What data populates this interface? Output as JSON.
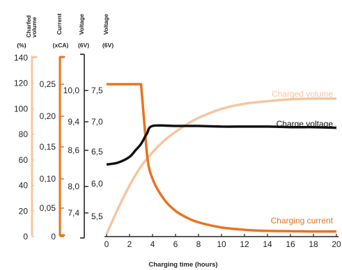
{
  "chart_data": {
    "type": "line",
    "xlabel": "Charging time (hours)",
    "x_ticks": [
      0,
      2,
      4,
      6,
      8,
      10,
      12,
      14,
      16,
      18,
      20
    ],
    "xlim": [
      0,
      20
    ],
    "grid": false,
    "axes": [
      {
        "id": "volume",
        "header": "Charfed\nvolume",
        "unit": "(%)",
        "color": "#f5c6a0",
        "ylim": [
          0,
          140
        ],
        "ticks": [
          "0",
          "20",
          "40",
          "60",
          "80",
          "100",
          "120",
          "140"
        ],
        "tick_values": [
          0,
          20,
          40,
          60,
          80,
          100,
          120,
          140
        ]
      },
      {
        "id": "current",
        "header": "Current",
        "unit": "(xCA)",
        "color": "#e8731e",
        "ylim": [
          0,
          0.28
        ],
        "ticks": [
          "0",
          "0,05",
          "0,10",
          "0,15",
          "0,20",
          "0,25"
        ],
        "tick_values": [
          0,
          0.05,
          0.1,
          0.15,
          0.2,
          0.25
        ]
      },
      {
        "id": "voltage12",
        "header": "Voltage",
        "unit": "(6V)",
        "color": "#222222",
        "ticks": [
          "7,4",
          "8,0",
          "8,6",
          "9,4",
          "10,0"
        ],
        "tick_values": [
          7.4,
          8.0,
          8.6,
          9.4,
          10.0
        ]
      },
      {
        "id": "voltage6",
        "header": "Voltage",
        "unit": "(6V)",
        "color": "#222222",
        "ticks": [
          "5,5",
          "6,0",
          "6,5",
          "7,0",
          "7,5"
        ],
        "tick_values": [
          5.5,
          6.0,
          6.5,
          7.0,
          7.5
        ]
      }
    ],
    "series": [
      {
        "name": "Charged volume",
        "axis": "volume",
        "color": "#f5c6a0",
        "x": [
          0,
          1,
          2,
          3,
          4,
          5,
          6,
          7,
          8,
          10,
          12,
          14,
          16,
          18,
          20
        ],
        "y": [
          2,
          22,
          40,
          55,
          66,
          75,
          82,
          88,
          93,
          100,
          104,
          106,
          107.5,
          108,
          108
        ]
      },
      {
        "name": "Charging current",
        "axis": "current",
        "color": "#e8731e",
        "x": [
          0,
          3,
          3.5,
          4,
          5,
          6,
          7,
          8,
          10,
          12,
          14,
          16,
          18,
          20
        ],
        "y": [
          0.25,
          0.25,
          0.14,
          0.1,
          0.065,
          0.045,
          0.033,
          0.025,
          0.016,
          0.012,
          0.01,
          0.0095,
          0.009,
          0.009
        ]
      },
      {
        "name": "Charge voltage",
        "axis": "voltage6",
        "color": "#111111",
        "x": [
          0,
          1,
          2,
          2.5,
          3,
          3.5,
          4,
          6,
          8,
          10,
          12,
          14,
          16,
          18,
          20
        ],
        "y": [
          6.3,
          6.33,
          6.42,
          6.52,
          6.63,
          6.8,
          6.93,
          6.93,
          6.93,
          6.92,
          6.92,
          6.92,
          6.91,
          6.91,
          6.9
        ]
      }
    ]
  }
}
